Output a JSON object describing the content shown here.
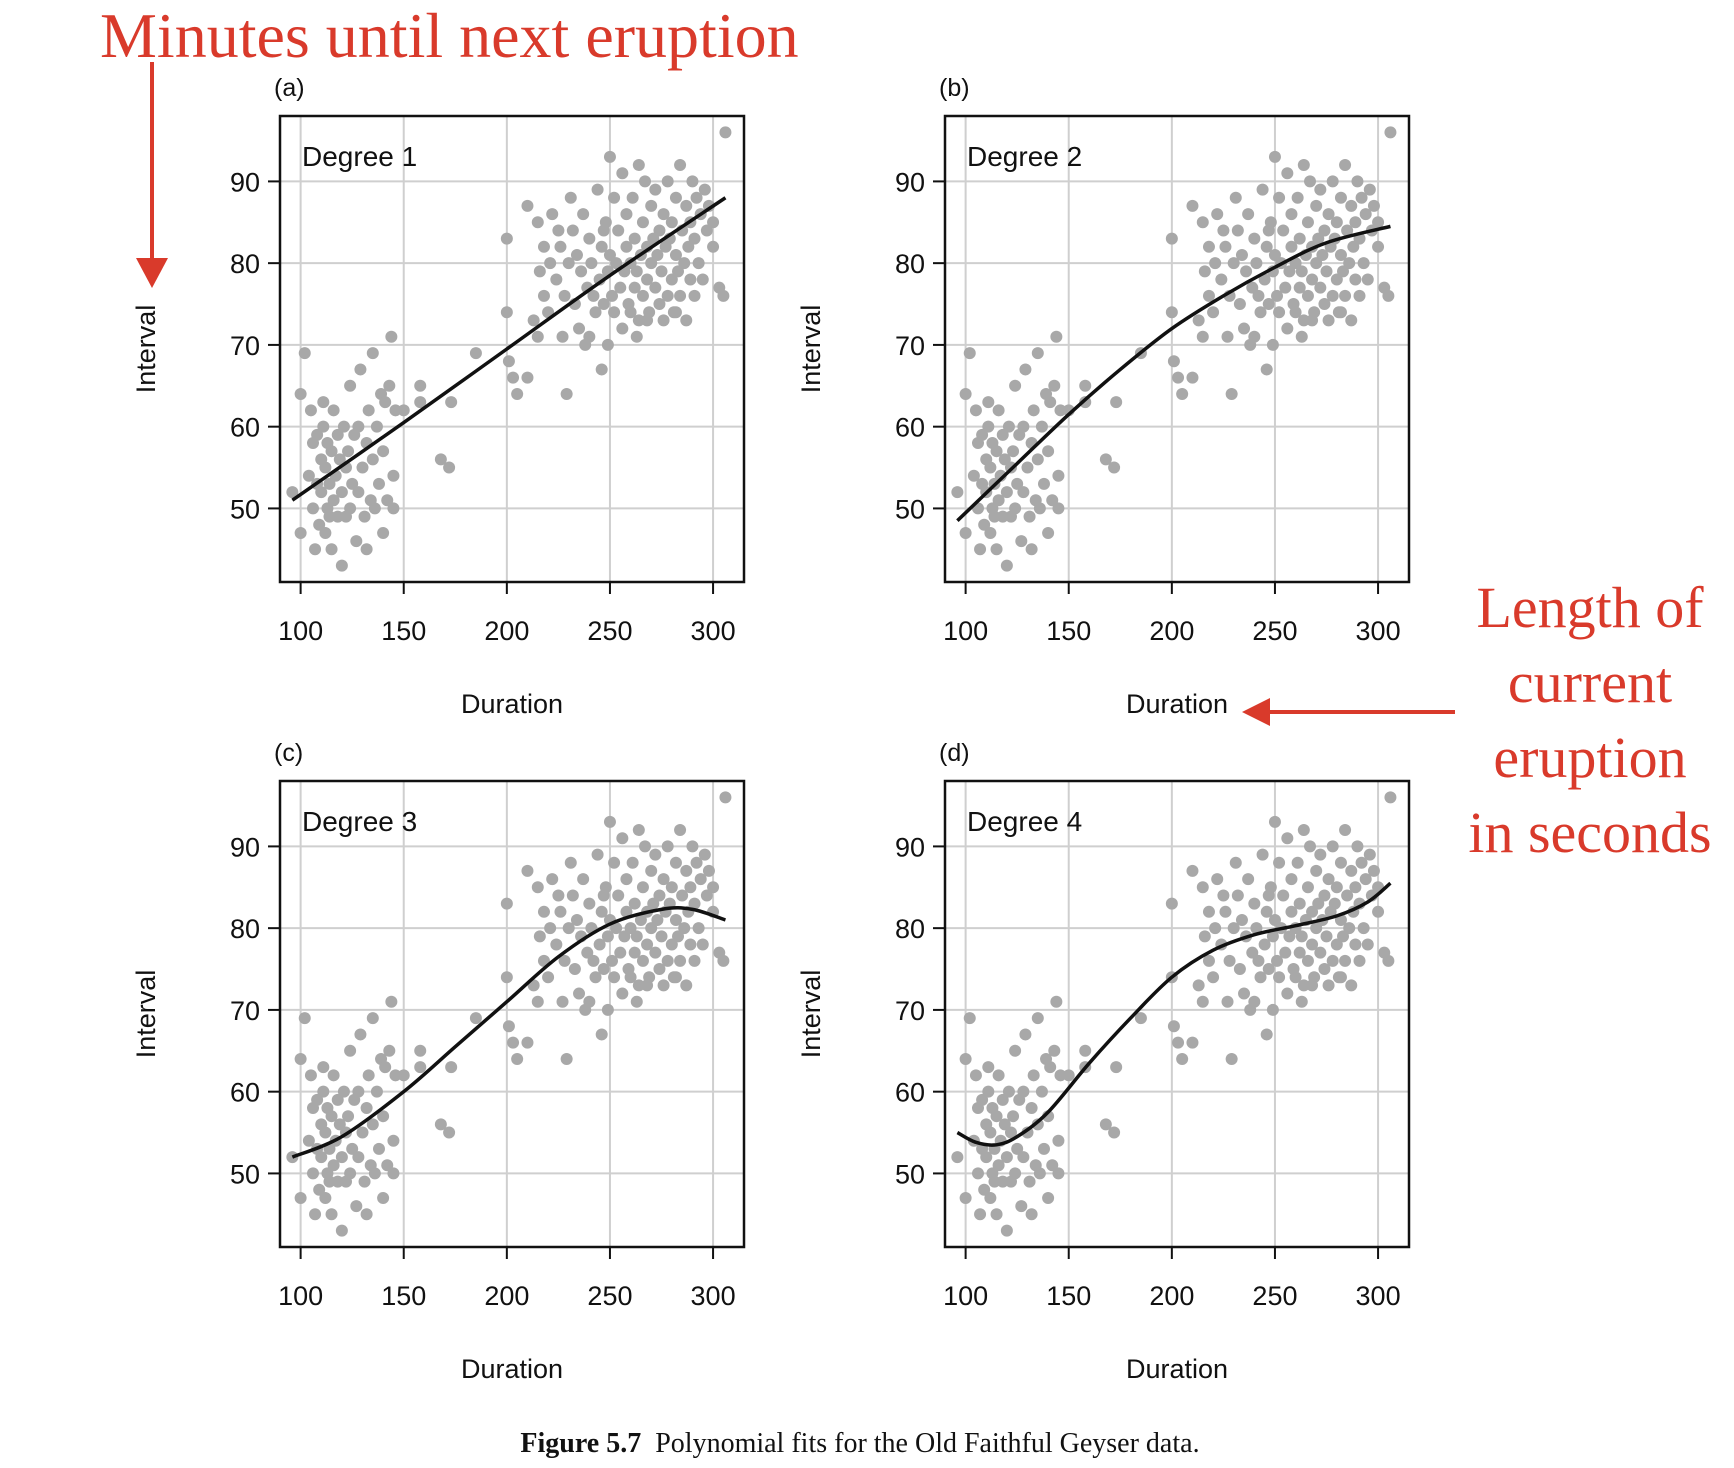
{
  "annotations": {
    "top": "Minutes until next eruption",
    "side_lines": [
      "Length of",
      "current",
      "eruption",
      "in seconds"
    ]
  },
  "caption": {
    "bold": "Figure 5.7",
    "text": "Polynomial fits for the Old Faithful Geyser data."
  },
  "colors": {
    "points": "#a8a8a8",
    "curve": "#111111",
    "grid": "#cfcfcf",
    "annotation": "#d93a2b"
  },
  "chart_data": [
    {
      "type": "scatter",
      "panel": "(a)",
      "label": "Degree 1",
      "xlabel": "Duration",
      "ylabel": "Interval",
      "xticks": [
        100,
        150,
        200,
        250,
        300
      ],
      "yticks": [
        50,
        60,
        70,
        80,
        90
      ],
      "xlim": [
        90,
        315
      ],
      "ylim": [
        41,
        98
      ],
      "grid": true,
      "fit_curve": [
        [
          96,
          51
        ],
        [
          150,
          60.5
        ],
        [
          200,
          69.5
        ],
        [
          250,
          78.5
        ],
        [
          306,
          88
        ]
      ]
    },
    {
      "type": "scatter",
      "panel": "(b)",
      "label": "Degree 2",
      "xlabel": "Duration",
      "ylabel": "Interval",
      "xticks": [
        100,
        150,
        200,
        250,
        300
      ],
      "yticks": [
        50,
        60,
        70,
        80,
        90
      ],
      "xlim": [
        90,
        315
      ],
      "ylim": [
        41,
        98
      ],
      "grid": true,
      "fit_curve": [
        [
          96,
          48.5
        ],
        [
          125,
          55.5
        ],
        [
          150,
          61.5
        ],
        [
          175,
          67
        ],
        [
          200,
          72
        ],
        [
          225,
          76
        ],
        [
          250,
          79.5
        ],
        [
          275,
          82.5
        ],
        [
          306,
          84.5
        ]
      ]
    },
    {
      "type": "scatter",
      "panel": "(c)",
      "label": "Degree 3",
      "xlabel": "Duration",
      "ylabel": "Interval",
      "xticks": [
        100,
        150,
        200,
        250,
        300
      ],
      "yticks": [
        50,
        60,
        70,
        80,
        90
      ],
      "xlim": [
        90,
        315
      ],
      "ylim": [
        41,
        98
      ],
      "grid": true,
      "fit_curve": [
        [
          96,
          52
        ],
        [
          120,
          54.5
        ],
        [
          150,
          60
        ],
        [
          175,
          65.5
        ],
        [
          200,
          71
        ],
        [
          225,
          76.5
        ],
        [
          250,
          80.5
        ],
        [
          275,
          82.3
        ],
        [
          290,
          82.3
        ],
        [
          306,
          81
        ]
      ]
    },
    {
      "type": "scatter",
      "panel": "(d)",
      "label": "Degree 4",
      "xlabel": "Duration",
      "ylabel": "Interval",
      "xticks": [
        100,
        150,
        200,
        250,
        300
      ],
      "yticks": [
        50,
        60,
        70,
        80,
        90
      ],
      "xlim": [
        90,
        315
      ],
      "ylim": [
        41,
        98
      ],
      "grid": true,
      "fit_curve": [
        [
          96,
          55
        ],
        [
          105,
          53.8
        ],
        [
          115,
          53.5
        ],
        [
          125,
          54.5
        ],
        [
          140,
          57.5
        ],
        [
          160,
          63.5
        ],
        [
          180,
          69
        ],
        [
          200,
          74
        ],
        [
          220,
          77.3
        ],
        [
          240,
          79.2
        ],
        [
          260,
          80.3
        ],
        [
          280,
          81.5
        ],
        [
          295,
          83.2
        ],
        [
          306,
          85.5
        ]
      ]
    }
  ],
  "points": [
    [
      96,
      52
    ],
    [
      100,
      64
    ],
    [
      102,
      69
    ],
    [
      100,
      47
    ],
    [
      104,
      54
    ],
    [
      105,
      62
    ],
    [
      106,
      50
    ],
    [
      106,
      58
    ],
    [
      107,
      45
    ],
    [
      108,
      53
    ],
    [
      108,
      59
    ],
    [
      109,
      48
    ],
    [
      110,
      56
    ],
    [
      110,
      52
    ],
    [
      111,
      60
    ],
    [
      111,
      63
    ],
    [
      112,
      47
    ],
    [
      112,
      55
    ],
    [
      113,
      50
    ],
    [
      113,
      58
    ],
    [
      114,
      53
    ],
    [
      114,
      49
    ],
    [
      115,
      57
    ],
    [
      115,
      45
    ],
    [
      116,
      51
    ],
    [
      116,
      62
    ],
    [
      117,
      54
    ],
    [
      118,
      49
    ],
    [
      118,
      59
    ],
    [
      119,
      56
    ],
    [
      120,
      43
    ],
    [
      120,
      52
    ],
    [
      121,
      60
    ],
    [
      122,
      55
    ],
    [
      122,
      49
    ],
    [
      123,
      57
    ],
    [
      124,
      50
    ],
    [
      124,
      65
    ],
    [
      125,
      53
    ],
    [
      126,
      59
    ],
    [
      127,
      46
    ],
    [
      128,
      52
    ],
    [
      128,
      60
    ],
    [
      129,
      67
    ],
    [
      130,
      55
    ],
    [
      131,
      49
    ],
    [
      132,
      58
    ],
    [
      132,
      45
    ],
    [
      133,
      62
    ],
    [
      134,
      51
    ],
    [
      135,
      69
    ],
    [
      135,
      56
    ],
    [
      136,
      50
    ],
    [
      137,
      60
    ],
    [
      138,
      53
    ],
    [
      139,
      64
    ],
    [
      140,
      47
    ],
    [
      140,
      57
    ],
    [
      141,
      63
    ],
    [
      142,
      51
    ],
    [
      143,
      65
    ],
    [
      144,
      71
    ],
    [
      145,
      54
    ],
    [
      145,
      50
    ],
    [
      146,
      62
    ],
    [
      150,
      62
    ],
    [
      158,
      63
    ],
    [
      158,
      65
    ],
    [
      168,
      56
    ],
    [
      172,
      55
    ],
    [
      173,
      63
    ],
    [
      185,
      69
    ],
    [
      200,
      83
    ],
    [
      200,
      74
    ],
    [
      201,
      68
    ],
    [
      203,
      66
    ],
    [
      205,
      64
    ],
    [
      210,
      66
    ],
    [
      210,
      87
    ],
    [
      213,
      73
    ],
    [
      215,
      71
    ],
    [
      215,
      85
    ],
    [
      216,
      79
    ],
    [
      218,
      82
    ],
    [
      218,
      76
    ],
    [
      220,
      74
    ],
    [
      221,
      80
    ],
    [
      222,
      86
    ],
    [
      224,
      78
    ],
    [
      225,
      84
    ],
    [
      226,
      82
    ],
    [
      227,
      71
    ],
    [
      228,
      76
    ],
    [
      229,
      64
    ],
    [
      230,
      80
    ],
    [
      231,
      88
    ],
    [
      232,
      84
    ],
    [
      233,
      75
    ],
    [
      234,
      81
    ],
    [
      235,
      72
    ],
    [
      236,
      79
    ],
    [
      237,
      86
    ],
    [
      238,
      70
    ],
    [
      239,
      77
    ],
    [
      240,
      83
    ],
    [
      240,
      71
    ],
    [
      241,
      80
    ],
    [
      242,
      76
    ],
    [
      243,
      74
    ],
    [
      244,
      89
    ],
    [
      245,
      78
    ],
    [
      246,
      82
    ],
    [
      246,
      67
    ],
    [
      247,
      75
    ],
    [
      248,
      85
    ],
    [
      249,
      79
    ],
    [
      249,
      70
    ],
    [
      250,
      93
    ],
    [
      250,
      81
    ],
    [
      251,
      76
    ],
    [
      252,
      88
    ],
    [
      252,
      74
    ],
    [
      253,
      80
    ],
    [
      254,
      84
    ],
    [
      255,
      77
    ],
    [
      256,
      91
    ],
    [
      256,
      72
    ],
    [
      257,
      79
    ],
    [
      258,
      86
    ],
    [
      258,
      82
    ],
    [
      259,
      75
    ],
    [
      260,
      80
    ],
    [
      260,
      74
    ],
    [
      261,
      88
    ],
    [
      262,
      83
    ],
    [
      262,
      77
    ],
    [
      263,
      79
    ],
    [
      264,
      92
    ],
    [
      264,
      73
    ],
    [
      265,
      81
    ],
    [
      266,
      85
    ],
    [
      266,
      76
    ],
    [
      267,
      90
    ],
    [
      268,
      78
    ],
    [
      268,
      82
    ],
    [
      269,
      74
    ],
    [
      270,
      87
    ],
    [
      270,
      80
    ],
    [
      271,
      83
    ],
    [
      272,
      77
    ],
    [
      272,
      89
    ],
    [
      273,
      81
    ],
    [
      274,
      75
    ],
    [
      274,
      84
    ],
    [
      275,
      79
    ],
    [
      276,
      86
    ],
    [
      276,
      73
    ],
    [
      277,
      82
    ],
    [
      278,
      90
    ],
    [
      278,
      76
    ],
    [
      279,
      83
    ],
    [
      280,
      78
    ],
    [
      280,
      85
    ],
    [
      281,
      74
    ],
    [
      282,
      81
    ],
    [
      282,
      88
    ],
    [
      283,
      79
    ],
    [
      284,
      92
    ],
    [
      284,
      76
    ],
    [
      285,
      84
    ],
    [
      286,
      80
    ],
    [
      287,
      87
    ],
    [
      287,
      73
    ],
    [
      288,
      82
    ],
    [
      289,
      78
    ],
    [
      289,
      85
    ],
    [
      290,
      90
    ],
    [
      291,
      76
    ],
    [
      291,
      83
    ],
    [
      292,
      88
    ],
    [
      293,
      80
    ],
    [
      294,
      86
    ],
    [
      295,
      78
    ],
    [
      296,
      89
    ],
    [
      297,
      84
    ],
    [
      298,
      87
    ],
    [
      300,
      85
    ],
    [
      300,
      82
    ],
    [
      303,
      77
    ],
    [
      305,
      76
    ],
    [
      306,
      96
    ],
    [
      263,
      71
    ],
    [
      247,
      84
    ],
    [
      268,
      73
    ],
    [
      282,
      74
    ]
  ]
}
